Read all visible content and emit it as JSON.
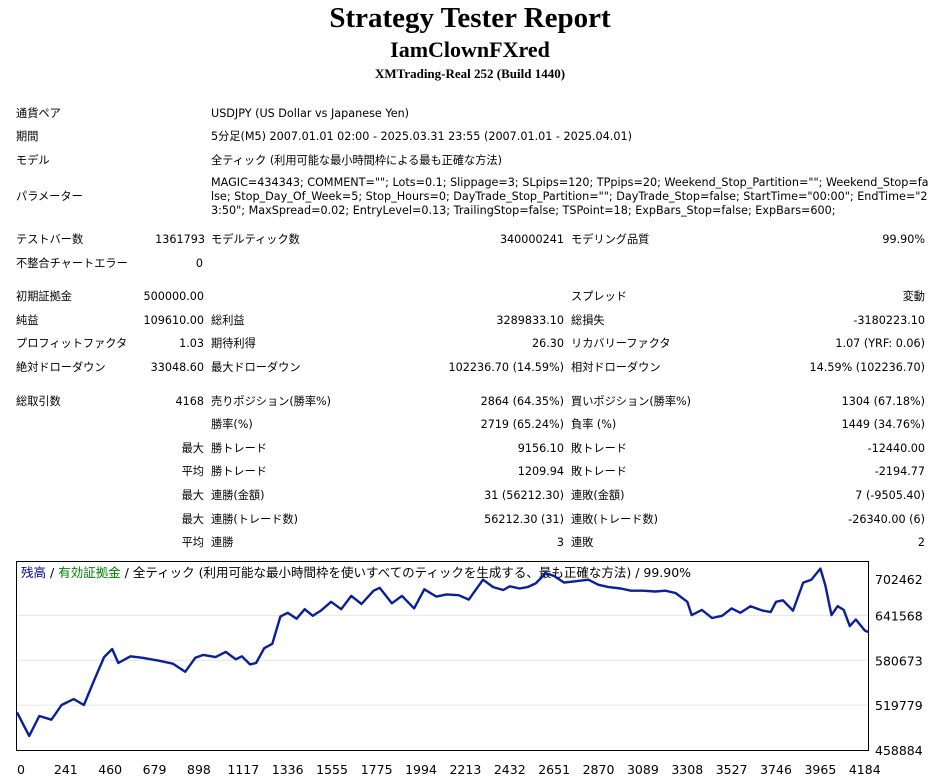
{
  "header": {
    "title": "Strategy Tester Report",
    "subtitle": "IamClownFXred",
    "server": "XMTrading-Real 252 (Build 1440)"
  },
  "info": [
    {
      "label": "通貨ペア",
      "value": "USDJPY (US Dollar vs Japanese Yen)"
    },
    {
      "label": "期間",
      "value": "5分足(M5) 2007.01.01 02:00 - 2025.03.31 23:55 (2007.01.01 - 2025.04.01)"
    },
    {
      "label": "モデル",
      "value": "全ティック (利用可能な最小時間枠による最も正確な方法)"
    },
    {
      "label": "パラメーター",
      "value": "MAGIC=434343; COMMENT=\"\"; Lots=0.1; Slippage=3; SLpips=120; TPpips=20; Weekend_Stop_Partition=\"\"; Weekend_Stop=false; Stop_Day_Of_Week=5; Stop_Hours=0; DayTrade_Stop_Partition=\"\"; DayTrade_Stop=false; StartTime=\"00:00\"; EndTime=\"23:50\"; MaxSpread=0.02; EntryLevel=0.13; TrailingStop=false; TSPoint=18; ExpBars_Stop=false; ExpBars=600;"
    }
  ],
  "stats": {
    "bars_label": "テストバー数",
    "bars": "1361793",
    "ticks_label": "モデルティック数",
    "ticks": "340000241",
    "quality_label": "モデリング品質",
    "quality": "99.90%",
    "mismatch_label": "不整合チャートエラー",
    "mismatch": "0",
    "deposit_label": "初期証拠金",
    "deposit": "500000.00",
    "spread_label": "スプレッド",
    "spread": "変動",
    "net_label": "純益",
    "net": "109610.00",
    "gross_profit_label": "総利益",
    "gross_profit": "3289833.10",
    "gross_loss_label": "総損失",
    "gross_loss": "-3180223.10",
    "pf_label": "プロフィットファクタ",
    "pf": "1.03",
    "payoff_label": "期待利得",
    "payoff": "26.30",
    "rf_label": "リカバリーファクタ",
    "rf": "1.07 (YRF: 0.06)",
    "abs_dd_label": "絶対ドローダウン",
    "abs_dd": "33048.60",
    "max_dd_label": "最大ドローダウン",
    "max_dd": "102236.70 (14.59%)",
    "rel_dd_label": "相対ドローダウン",
    "rel_dd": "14.59% (102236.70)",
    "trades_label": "総取引数",
    "trades": "4168",
    "short_label": "売りポジション(勝率%)",
    "short": "2864 (64.35%)",
    "long_label": "買いポジション(勝率%)",
    "long": "1304 (67.18%)",
    "win_pct_label": "勝率(%)",
    "win_pct": "2719 (65.24%)",
    "loss_pct_label": "負率 (%)",
    "loss_pct": "1449 (34.76%)",
    "max_label": "最大",
    "avg_label": "平均",
    "largest_win_label": "勝トレード",
    "largest_win": "9156.10",
    "largest_loss_label": "敗トレード",
    "largest_loss": "-12440.00",
    "avg_win_label": "勝トレード",
    "avg_win": "1209.94",
    "avg_loss_label": "敗トレード",
    "avg_loss": "-2194.77",
    "max_consec_win_label": "連勝(金額)",
    "max_consec_win": "31 (56212.30)",
    "max_consec_loss_label": "連敗(金額)",
    "max_consec_loss": "7 (-9505.40)",
    "max_consec_profit_label": "連勝(トレード数)",
    "max_consec_profit": "56212.30 (31)",
    "max_consec_lossamt_label": "連敗(トレード数)",
    "max_consec_lossamt": "-26340.00 (6)",
    "avg_consec_win_label": "連勝",
    "avg_consec_win": "3",
    "avg_consec_loss_label": "連敗",
    "avg_consec_loss": "2"
  },
  "chart_data": {
    "type": "line",
    "legend": {
      "balance": "残高",
      "sep1": " / ",
      "equity": "有効証拠金",
      "rest": " / 全ティック (利用可能な最小時間枠を使いすべてのティックを生成する、最も正確な方法) / 99.90%"
    },
    "colors": {
      "balance": "#00008B",
      "equity": "#008000",
      "line": "#0A1F9A"
    },
    "x_ticks": [
      0,
      241,
      460,
      679,
      898,
      1117,
      1336,
      1555,
      1775,
      1994,
      2213,
      2432,
      2651,
      2870,
      3089,
      3308,
      3527,
      3746,
      3965,
      4184
    ],
    "y_ticks": [
      702462,
      641568,
      580673,
      519779,
      458884
    ],
    "xlim": [
      0,
      4200
    ],
    "ylim": [
      458884,
      714000
    ],
    "series": [
      {
        "x": [
          0,
          60,
          110,
          170,
          220,
          280,
          330,
          380,
          430,
          470,
          500,
          560,
          620,
          700,
          770,
          830,
          880,
          920,
          980,
          1030,
          1080,
          1110,
          1150,
          1180,
          1220,
          1260,
          1300,
          1336,
          1380,
          1420,
          1460,
          1500,
          1550,
          1600,
          1650,
          1700,
          1760,
          1790,
          1850,
          1900,
          1960,
          2010,
          2070,
          2120,
          2180,
          2230,
          2300,
          2350,
          2400,
          2432,
          2480,
          2520,
          2560,
          2610,
          2651,
          2700,
          2760,
          2820,
          2870,
          2920,
          2980,
          3030,
          3089,
          3150,
          3200,
          3250,
          3308,
          3330,
          3380,
          3430,
          3480,
          3527,
          3570,
          3620,
          3680,
          3720,
          3746,
          3780,
          3830,
          3880,
          3920,
          3965,
          3990,
          4020,
          4050,
          4080,
          4110,
          4140,
          4184,
          4200
        ],
        "y": [
          510000,
          478000,
          505000,
          500000,
          520000,
          528000,
          520000,
          553000,
          585000,
          596000,
          577000,
          586000,
          584000,
          580000,
          576000,
          565000,
          584000,
          588000,
          585000,
          592000,
          582000,
          586000,
          575000,
          577000,
          597000,
          603000,
          640000,
          645000,
          637000,
          650000,
          641000,
          648000,
          660000,
          650000,
          668000,
          657000,
          675000,
          679000,
          658000,
          668000,
          651000,
          677000,
          667000,
          670000,
          669000,
          663000,
          690000,
          680000,
          676000,
          681000,
          678000,
          680000,
          685000,
          699000,
          695000,
          686000,
          688000,
          690000,
          683000,
          680000,
          678000,
          675000,
          675000,
          674000,
          675000,
          672000,
          660000,
          642000,
          649000,
          638000,
          641000,
          651000,
          645000,
          654000,
          648000,
          646000,
          660000,
          662000,
          648000,
          686000,
          690000,
          705000,
          682000,
          642000,
          654000,
          649000,
          627000,
          636000,
          621000,
          619000
        ]
      }
    ]
  }
}
